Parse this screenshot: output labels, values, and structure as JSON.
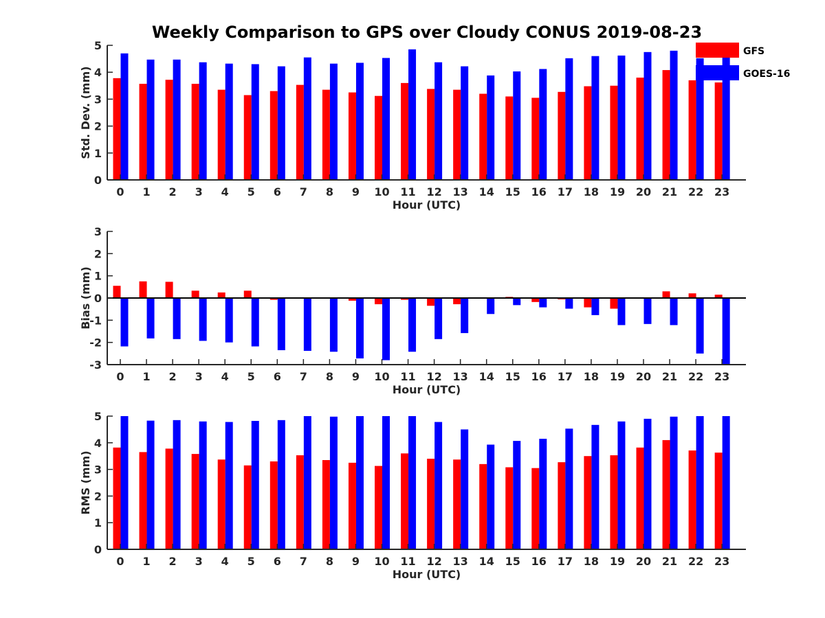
{
  "title": "Weekly Comparison to GPS over Cloudy CONUS 2019-08-23",
  "colors": {
    "GFS": "#ff0000",
    "GOES-16": "#0000ff"
  },
  "legend": {
    "placement": "top-right",
    "entries": [
      "GFS",
      "GOES-16"
    ]
  },
  "chart_data": [
    {
      "type": "bar",
      "xlabel": "Hour (UTC)",
      "ylabel": "Std. Dev. (mm)",
      "ylim": [
        0,
        5
      ],
      "yticks": [
        0,
        1,
        2,
        3,
        4,
        5
      ],
      "categories": [
        "0",
        "1",
        "2",
        "3",
        "4",
        "5",
        "6",
        "7",
        "8",
        "9",
        "10",
        "11",
        "12",
        "13",
        "14",
        "15",
        "16",
        "17",
        "18",
        "19",
        "20",
        "21",
        "22",
        "23"
      ],
      "series": [
        {
          "name": "GFS",
          "values": [
            3.78,
            3.57,
            3.72,
            3.57,
            3.35,
            3.15,
            3.3,
            3.53,
            3.35,
            3.25,
            3.12,
            3.6,
            3.38,
            3.35,
            3.2,
            3.1,
            3.05,
            3.27,
            3.48,
            3.5,
            3.8,
            4.08,
            3.7,
            3.62
          ]
        },
        {
          "name": "GOES-16",
          "values": [
            4.7,
            4.47,
            4.47,
            4.37,
            4.32,
            4.3,
            4.22,
            4.55,
            4.32,
            4.35,
            4.53,
            4.85,
            4.37,
            4.22,
            3.88,
            4.03,
            4.12,
            4.52,
            4.6,
            4.62,
            4.75,
            4.8,
            4.52,
            4.65
          ]
        }
      ]
    },
    {
      "type": "bar",
      "xlabel": "Hour (UTC)",
      "ylabel": "Bias (mm)",
      "ylim": [
        -3,
        3
      ],
      "yticks": [
        -3,
        -2,
        -1,
        0,
        1,
        2,
        3
      ],
      "zero_line": true,
      "categories": [
        "0",
        "1",
        "2",
        "3",
        "4",
        "5",
        "6",
        "7",
        "8",
        "9",
        "10",
        "11",
        "12",
        "13",
        "14",
        "15",
        "16",
        "17",
        "18",
        "19",
        "20",
        "21",
        "22",
        "23"
      ],
      "series": [
        {
          "name": "GFS",
          "values": [
            0.55,
            0.75,
            0.73,
            0.33,
            0.25,
            0.33,
            -0.08,
            0.03,
            0.02,
            -0.12,
            -0.28,
            -0.08,
            -0.35,
            -0.28,
            0.0,
            0.05,
            -0.18,
            -0.06,
            -0.42,
            -0.48,
            0.0,
            0.3,
            0.21,
            0.15
          ]
        },
        {
          "name": "GOES-16",
          "values": [
            -2.18,
            -1.82,
            -1.85,
            -1.93,
            -2.0,
            -2.18,
            -2.35,
            -2.38,
            -2.42,
            -2.72,
            -2.8,
            -2.42,
            -1.85,
            -1.58,
            -0.72,
            -0.32,
            -0.42,
            -0.48,
            -0.77,
            -1.22,
            -1.17,
            -1.22,
            -2.5,
            -3.0
          ]
        }
      ]
    },
    {
      "type": "bar",
      "xlabel": "Hour (UTC)",
      "ylabel": "RMS (mm)",
      "ylim": [
        0,
        5
      ],
      "yticks": [
        0,
        1,
        2,
        3,
        4,
        5
      ],
      "categories": [
        "0",
        "1",
        "2",
        "3",
        "4",
        "5",
        "6",
        "7",
        "8",
        "9",
        "10",
        "11",
        "12",
        "13",
        "14",
        "15",
        "16",
        "17",
        "18",
        "19",
        "20",
        "21",
        "22",
        "23"
      ],
      "series": [
        {
          "name": "GFS",
          "values": [
            3.82,
            3.65,
            3.78,
            3.58,
            3.37,
            3.15,
            3.3,
            3.53,
            3.35,
            3.25,
            3.13,
            3.6,
            3.4,
            3.37,
            3.2,
            3.08,
            3.05,
            3.27,
            3.5,
            3.53,
            3.82,
            4.1,
            3.71,
            3.63
          ]
        },
        {
          "name": "GOES-16",
          "values": [
            5.0,
            4.83,
            4.85,
            4.8,
            4.78,
            4.82,
            4.85,
            5.0,
            4.98,
            5.0,
            5.0,
            5.0,
            4.78,
            4.5,
            3.93,
            4.07,
            4.15,
            4.53,
            4.67,
            4.8,
            4.9,
            4.98,
            5.0,
            5.0
          ]
        }
      ]
    }
  ]
}
